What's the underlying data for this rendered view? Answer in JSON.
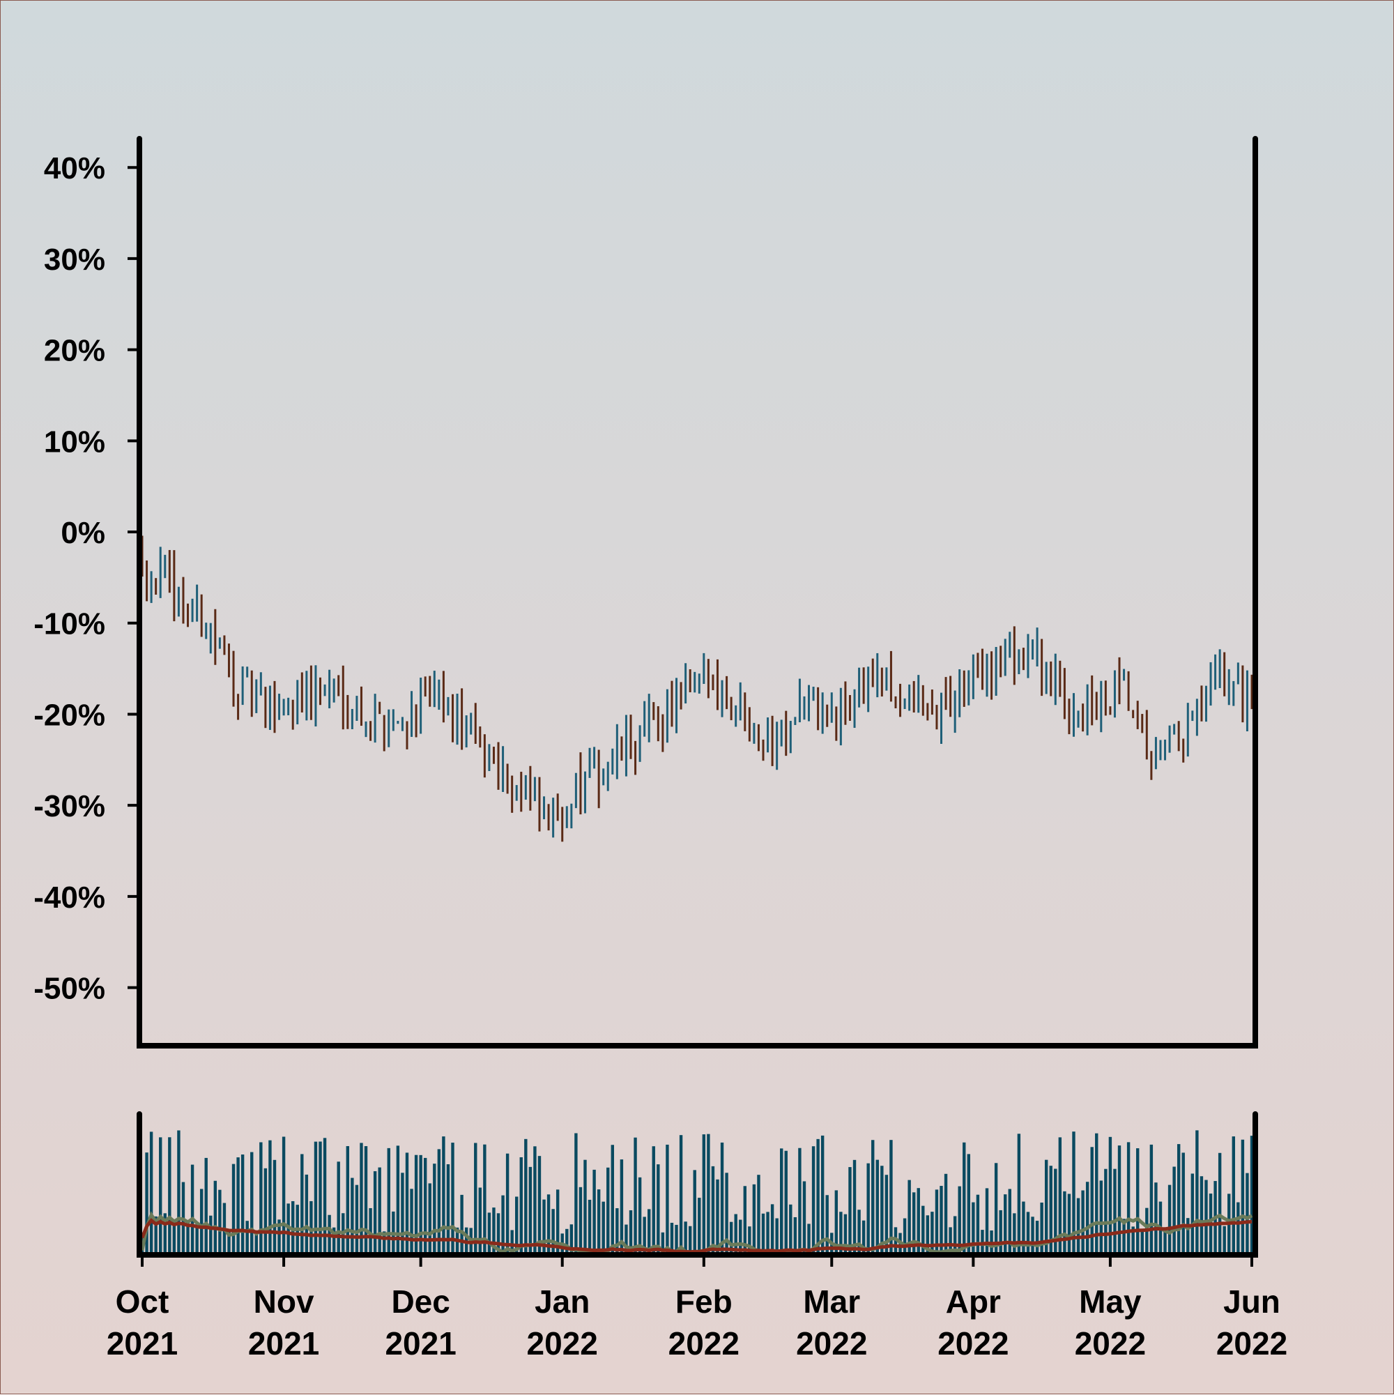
{
  "chart_data": [
    {
      "type": "ohlc",
      "title": "",
      "xlabel": "",
      "ylabel": "",
      "x_range": [
        "2021-10-01",
        "2022-06-01"
      ],
      "ylim": [
        -56,
        43
      ],
      "yticks": [
        40,
        30,
        20,
        10,
        0,
        -10,
        -20,
        -30,
        -40,
        -50
      ],
      "ytick_labels": [
        "40%",
        "30%",
        "20%",
        "10%",
        "0%",
        "-10%",
        "-20%",
        "-30%",
        "-40%",
        "-50%"
      ],
      "grid": false,
      "up_color": "#1f5f78",
      "down_color": "#5a2a16",
      "trend_close": [
        [
          "2021-10-01",
          -3
        ],
        [
          "2021-10-08",
          -7
        ],
        [
          "2021-10-15",
          -10
        ],
        [
          "2021-10-22",
          -17
        ],
        [
          "2021-10-29",
          -20
        ],
        [
          "2021-11-05",
          -18
        ],
        [
          "2021-11-12",
          -17
        ],
        [
          "2021-11-19",
          -20
        ],
        [
          "2021-11-26",
          -21
        ],
        [
          "2021-12-03",
          -18
        ],
        [
          "2021-12-10",
          -21
        ],
        [
          "2021-12-17",
          -25
        ],
        [
          "2021-12-24",
          -29
        ],
        [
          "2021-12-29",
          -32
        ],
        [
          "2022-01-05",
          -28
        ],
        [
          "2022-01-12",
          -25
        ],
        [
          "2022-01-19",
          -22
        ],
        [
          "2022-01-26",
          -19
        ],
        [
          "2022-02-02",
          -16
        ],
        [
          "2022-02-09",
          -19
        ],
        [
          "2022-02-16",
          -23
        ],
        [
          "2022-02-23",
          -18
        ],
        [
          "2022-03-02",
          -21
        ],
        [
          "2022-03-09",
          -16
        ],
        [
          "2022-03-16",
          -18
        ],
        [
          "2022-03-23",
          -20
        ],
        [
          "2022-03-30",
          -17
        ],
        [
          "2022-04-06",
          -14
        ],
        [
          "2022-04-13",
          -13
        ],
        [
          "2022-04-20",
          -18
        ],
        [
          "2022-04-27",
          -20
        ],
        [
          "2022-05-04",
          -18
        ],
        [
          "2022-05-11",
          -26
        ],
        [
          "2022-05-18",
          -22
        ],
        [
          "2022-05-25",
          -16
        ],
        [
          "2022-06-01",
          -18
        ]
      ]
    },
    {
      "type": "bar",
      "title": "",
      "bar_color": "#0a4a60",
      "moving_average_colors": [
        "#6b7b5a",
        "#8a2a1a"
      ],
      "relative_volume_range": [
        0,
        1
      ],
      "x_range": [
        "2021-10-01",
        "2022-06-01"
      ]
    }
  ],
  "x_axis": {
    "ticks": [
      {
        "date": "2021-10-01",
        "month": "Oct",
        "year": "2021"
      },
      {
        "date": "2021-11-01",
        "month": "Nov",
        "year": "2021"
      },
      {
        "date": "2021-12-01",
        "month": "Dec",
        "year": "2021"
      },
      {
        "date": "2022-01-01",
        "month": "Jan",
        "year": "2022"
      },
      {
        "date": "2022-02-01",
        "month": "Feb",
        "year": "2022"
      },
      {
        "date": "2022-03-01",
        "month": "Mar",
        "year": "2022"
      },
      {
        "date": "2022-04-01",
        "month": "Apr",
        "year": "2022"
      },
      {
        "date": "2022-05-01",
        "month": "May",
        "year": "2022"
      },
      {
        "date": "2022-06-01",
        "month": "Jun",
        "year": "2022"
      }
    ]
  }
}
